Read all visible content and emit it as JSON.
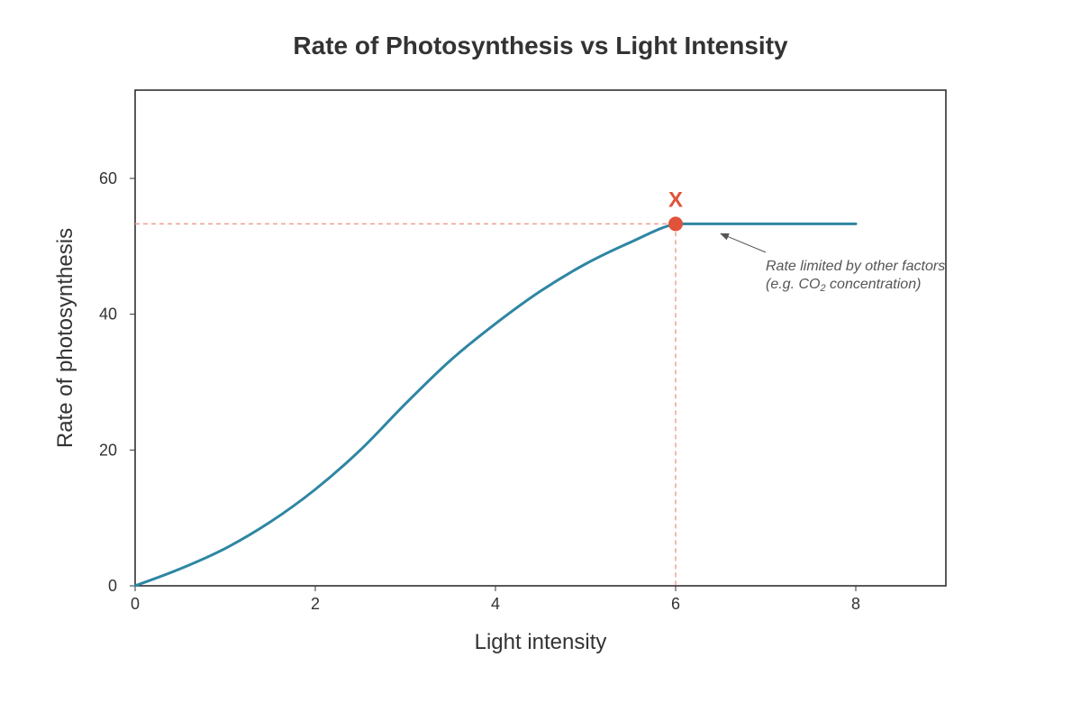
{
  "chart_data": {
    "type": "line",
    "title": "Rate of Photosynthesis vs Light Intensity",
    "xlabel": "Light intensity",
    "ylabel": "Rate of photosynthesis",
    "xlim": [
      0,
      9
    ],
    "ylim": [
      0,
      73
    ],
    "xticks": [
      0,
      2,
      4,
      6,
      8
    ],
    "yticks": [
      0,
      20,
      40,
      60
    ],
    "grid": false,
    "series": [
      {
        "color": "#2e86a3",
        "x": [
          0,
          0.5,
          1,
          1.5,
          2,
          2.5,
          3,
          3.5,
          4,
          4.5,
          5,
          5.5,
          6,
          6.5,
          7,
          7.5,
          8
        ],
        "y": [
          0,
          2.5,
          5.5,
          9.4,
          14.2,
          20,
          26.8,
          33.2,
          38.6,
          43.4,
          47.4,
          50.6,
          53.3,
          53.3,
          53.3,
          53.3,
          53.3
        ]
      }
    ],
    "marker": {
      "label": "X",
      "x": 6,
      "y": 53.3,
      "color": "#e0533a",
      "guide_color": "#f0a090"
    },
    "annotation": {
      "line1": "Rate limited by other factors",
      "line2_prefix": "(e.g. CO",
      "line2_sub": "2",
      "line2_suffix": " concentration)",
      "points_to": [
        6.5,
        52
      ]
    }
  }
}
